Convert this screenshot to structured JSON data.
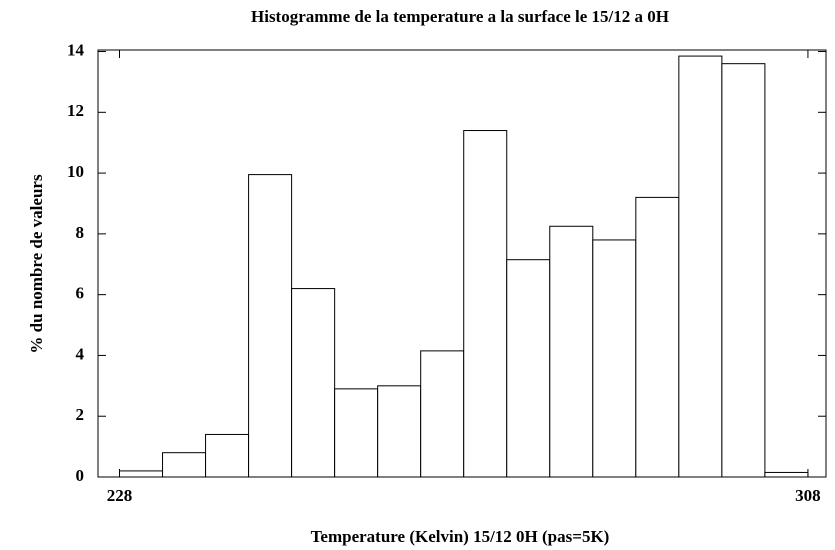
{
  "chart_data": {
    "type": "histogram",
    "title": "Histogramme de la temperature a la surface le 15/12 a 0H",
    "x_label": "Temperature (Kelvin) 15/12 0H (pas=5K)",
    "y_label": "% du nombre de valeurs",
    "bins": [
      228,
      233,
      238,
      243,
      248,
      253,
      258,
      263,
      268,
      273,
      278,
      283,
      288,
      293,
      298,
      303,
      308
    ],
    "values": [
      0.2,
      0.8,
      1.4,
      9.95,
      6.2,
      2.9,
      3.0,
      4.15,
      11.4,
      7.15,
      8.25,
      7.8,
      9.2,
      13.85,
      13.6,
      0.15
    ],
    "color": "#ffffff",
    "xlim": [
      225.5,
      310.1
    ],
    "xticks": [
      228,
      308
    ],
    "ylim": [
      0,
      14.05
    ],
    "yticks": [
      0,
      2,
      4,
      6,
      8,
      10,
      12,
      14
    ],
    "grid": false
  }
}
